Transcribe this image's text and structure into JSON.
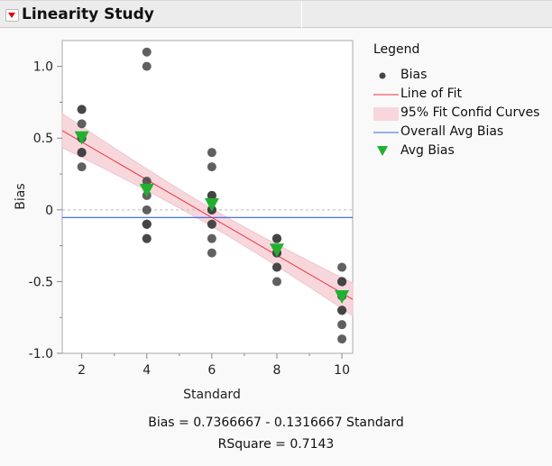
{
  "header": {
    "title": "Linearity Study"
  },
  "legend": {
    "title": "Legend",
    "items": [
      "Bias",
      "Line of Fit",
      "95% Fit Confid Curves",
      "Overall Avg Bias",
      "Avg Bias"
    ]
  },
  "footer": {
    "equation": "Bias = 0.7366667 - 0.1316667 Standard",
    "rsquare": "RSquare = 0.7143"
  },
  "colors": {
    "points": "#444444",
    "fit_line": "#ee3344",
    "band": "#f8d7dc",
    "overall_avg": "#3366dd",
    "avg_bias": "#22b030"
  },
  "chart_data": {
    "type": "scatter",
    "xlabel": "Standard",
    "ylabel": "Bias",
    "xlim": [
      1.4,
      10.33
    ],
    "ylim": [
      -1.0,
      1.18
    ],
    "xticks": [
      "2",
      "4",
      "6",
      "8",
      "10"
    ],
    "yticks": [
      "-1.0",
      "-0.5",
      "0",
      "0.5",
      "1.0"
    ],
    "grid": false,
    "legend_position": "right",
    "bias": [
      {
        "x": 2,
        "values": [
          0.7,
          0.5,
          0.4,
          0.5,
          0.7,
          0.3,
          0.5,
          0.5,
          0.4,
          0.4,
          0.6,
          0.4
        ]
      },
      {
        "x": 4,
        "values": [
          1.1,
          -0.1,
          0.2,
          1.0,
          -0.2,
          -0.1,
          -0.1,
          -0.1,
          -0.1,
          0.0,
          0.1,
          -0.2
        ]
      },
      {
        "x": 6,
        "values": [
          -0.2,
          -0.3,
          -0.1,
          -0.1,
          0.0,
          0.1,
          0.0,
          0.1,
          0.4,
          0.3,
          0.0,
          0.1
        ]
      },
      {
        "x": 8,
        "values": [
          -0.4,
          -0.3,
          -0.2,
          -0.3,
          -0.2,
          -0.2,
          -0.2,
          -0.3,
          -0.2,
          -0.5,
          -0.4,
          -0.3
        ]
      },
      {
        "x": 10,
        "values": [
          -0.9,
          -0.7,
          -0.5,
          -0.7,
          -0.6,
          -0.5,
          -0.5,
          -0.5,
          -0.4,
          -0.8,
          -0.7,
          -0.6
        ]
      }
    ],
    "avg_bias": [
      {
        "x": 2,
        "y": 0.491667
      },
      {
        "x": 4,
        "y": 0.125
      },
      {
        "x": 6,
        "y": 0.025
      },
      {
        "x": 8,
        "y": -0.291667
      },
      {
        "x": 10,
        "y": -0.616667
      }
    ],
    "fit": {
      "intercept": 0.7366667,
      "slope": -0.1316667,
      "confidence": 0.95
    },
    "overall_avg_bias": -0.053333
  }
}
